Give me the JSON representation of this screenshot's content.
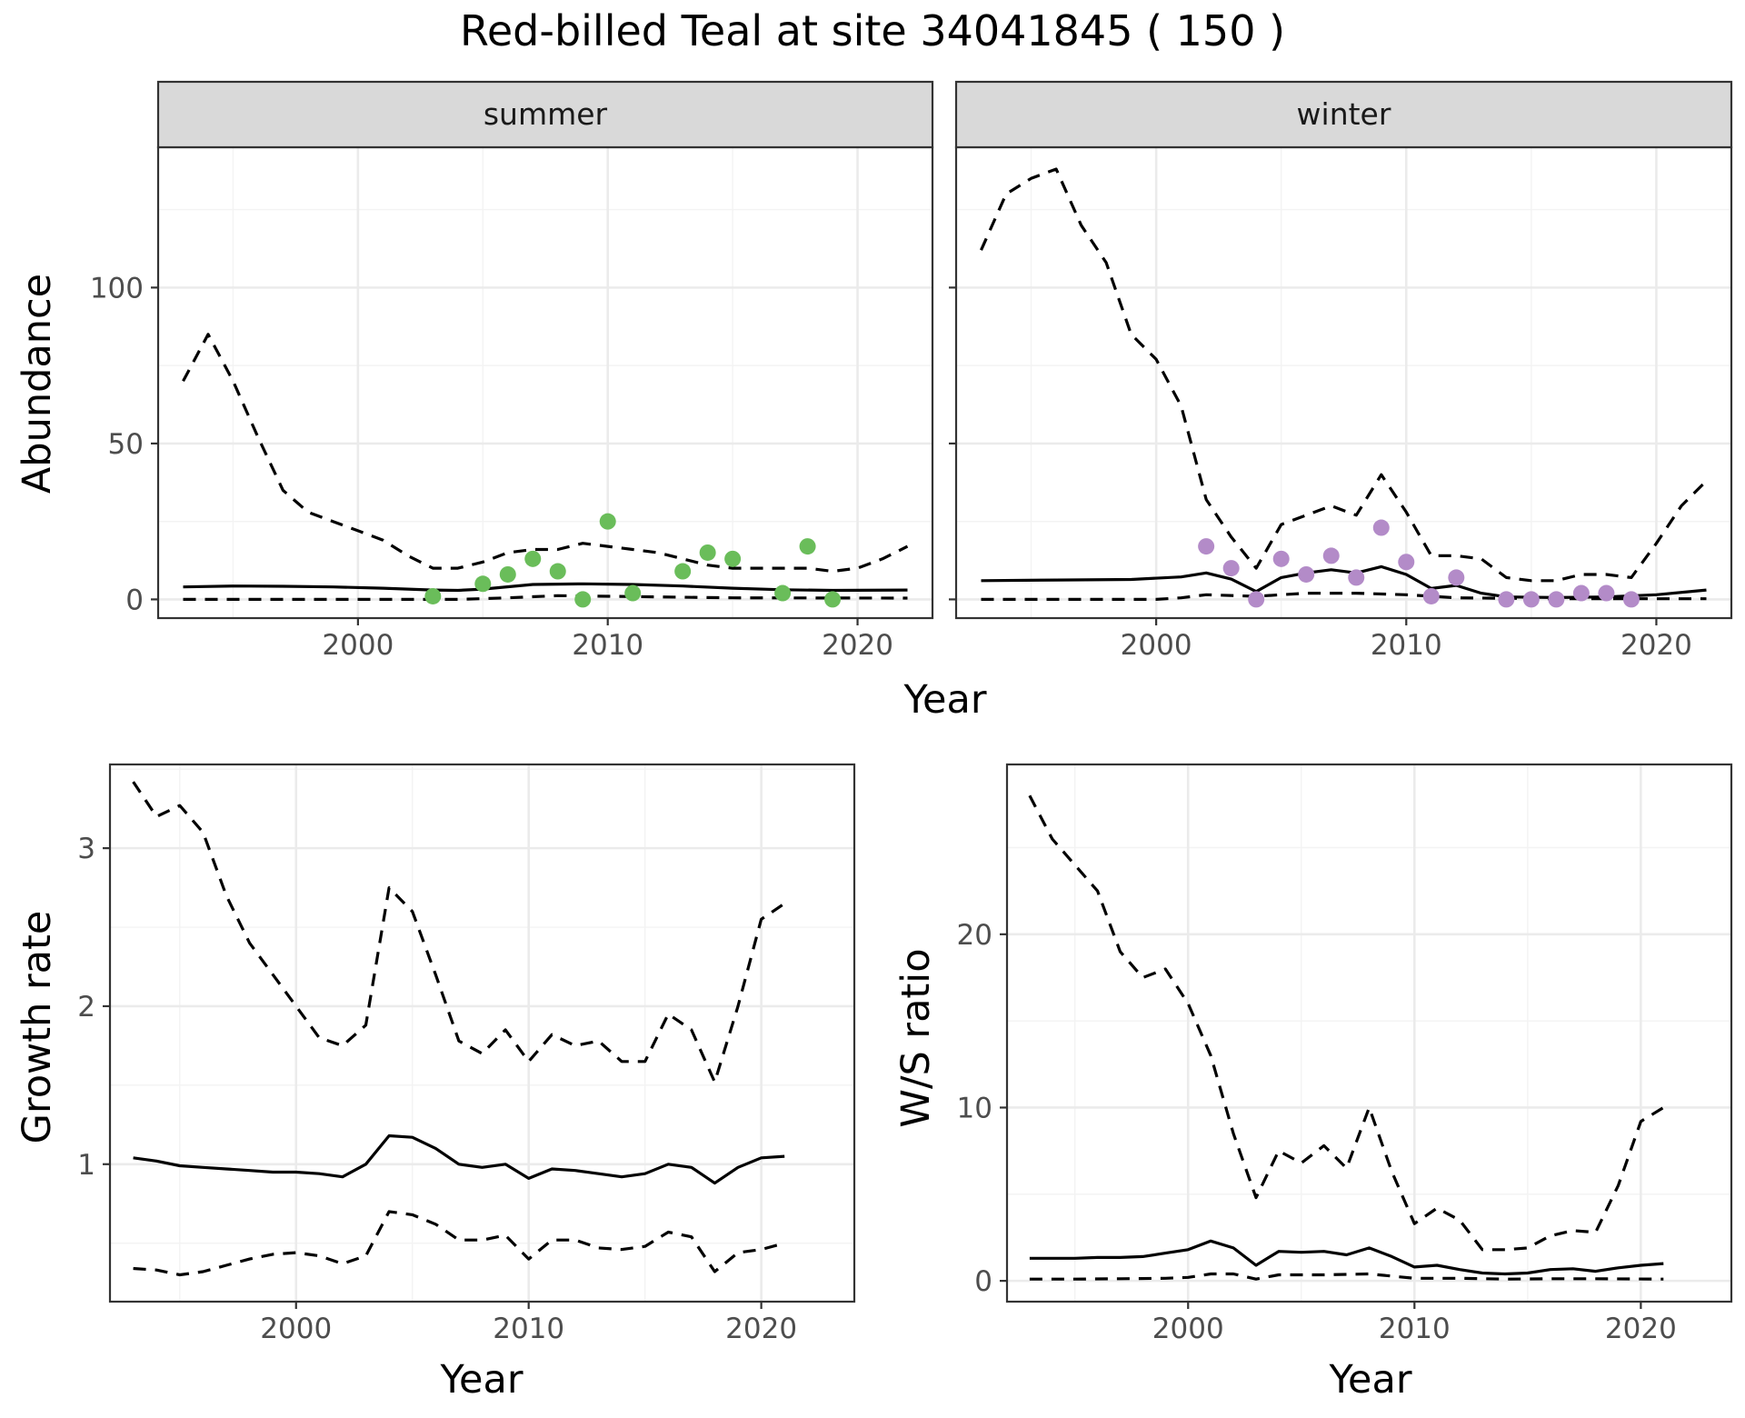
{
  "title": "Red-billed Teal at site 34041845 ( 150 )",
  "colors": {
    "summer_points": "#6abd5a",
    "winter_points": "#b38bc8"
  },
  "chart_data": [
    {
      "id": "abundance_summer",
      "type": "line",
      "facet": "summer",
      "xlabel": "Year",
      "ylabel": "Abundance",
      "xlim": [
        1992,
        2023
      ],
      "ylim": [
        -6,
        145
      ],
      "xticks": [
        2000,
        2010,
        2020
      ],
      "yticks": [
        0,
        50,
        100
      ],
      "grid": true,
      "series": [
        {
          "role": "upper",
          "x": [
            1993,
            1994,
            1995,
            1996,
            1997,
            1998,
            1999,
            2000,
            2001,
            2002,
            2003,
            2004,
            2005,
            2006,
            2007,
            2008,
            2009,
            2010,
            2011,
            2012,
            2013,
            2014,
            2015,
            2016,
            2017,
            2018,
            2019,
            2020,
            2021,
            2022
          ],
          "y": [
            70,
            85,
            70,
            52,
            35,
            28,
            25,
            22,
            19,
            14,
            10,
            10,
            12,
            15,
            16,
            16,
            18,
            17,
            16,
            15,
            13,
            11,
            10,
            10,
            10,
            10,
            9,
            10,
            13,
            17
          ]
        },
        {
          "role": "estimate",
          "x": [
            1993,
            1995,
            1997,
            1999,
            2001,
            2003,
            2004,
            2005,
            2007,
            2009,
            2011,
            2013,
            2015,
            2017,
            2019,
            2022
          ],
          "y": [
            4,
            4.3,
            4.2,
            4,
            3.6,
            3.0,
            2.9,
            3.3,
            4.8,
            5.0,
            4.8,
            4.3,
            3.6,
            3.1,
            2.9,
            3.0
          ]
        },
        {
          "role": "lower",
          "x": [
            1993,
            2000,
            2004,
            2006,
            2008,
            2010,
            2015,
            2022
          ],
          "y": [
            0,
            0,
            0,
            0.5,
            1.2,
            1.0,
            0.5,
            0.4
          ]
        }
      ],
      "points": {
        "x": [
          2003,
          2005,
          2006,
          2007,
          2008,
          2009,
          2010,
          2011,
          2013,
          2014,
          2015,
          2017,
          2018,
          2019
        ],
        "y": [
          1,
          5,
          8,
          13,
          9,
          0,
          25,
          2,
          9,
          15,
          13,
          2,
          17,
          0
        ]
      }
    },
    {
      "id": "abundance_winter",
      "type": "line",
      "facet": "winter",
      "xlabel": "Year",
      "ylabel": "Abundance",
      "xlim": [
        1992,
        2023
      ],
      "ylim": [
        -6,
        145
      ],
      "xticks": [
        2000,
        2010,
        2020
      ],
      "yticks": [
        0,
        50,
        100
      ],
      "grid": true,
      "series": [
        {
          "role": "upper",
          "x": [
            1993,
            1994,
            1995,
            1996,
            1997,
            1998,
            1999,
            2000,
            2001,
            2002,
            2003,
            2004,
            2005,
            2006,
            2007,
            2008,
            2009,
            2010,
            2011,
            2012,
            2013,
            2014,
            2015,
            2016,
            2017,
            2018,
            2019,
            2020,
            2021,
            2022
          ],
          "y": [
            112,
            130,
            135,
            138,
            120,
            108,
            85,
            77,
            62,
            32,
            20,
            10,
            24,
            27,
            30,
            27,
            40,
            28,
            14,
            14,
            13,
            7,
            6,
            6,
            8,
            8,
            7,
            18,
            30,
            38
          ]
        },
        {
          "role": "estimate",
          "x": [
            1993,
            1996,
            1999,
            2001,
            2002,
            2003,
            2004,
            2005,
            2006,
            2007,
            2008,
            2009,
            2010,
            2011,
            2012,
            2013,
            2014,
            2016,
            2018,
            2020,
            2022
          ],
          "y": [
            6,
            6.2,
            6.4,
            7.2,
            8.5,
            6.5,
            2.5,
            7.0,
            8.5,
            9.5,
            8.5,
            10.5,
            8.0,
            3.5,
            4.5,
            2.0,
            0.8,
            0.6,
            0.8,
            1.5,
            3.0
          ]
        },
        {
          "role": "lower",
          "x": [
            1993,
            2000,
            2001,
            2002,
            2004,
            2006,
            2008,
            2010,
            2012,
            2016,
            2022
          ],
          "y": [
            0,
            0,
            0.5,
            1.5,
            1.0,
            2.0,
            2.0,
            1.5,
            0.5,
            0.2,
            0.2
          ]
        }
      ],
      "points": {
        "x": [
          2002,
          2003,
          2004,
          2005,
          2006,
          2007,
          2008,
          2009,
          2010,
          2011,
          2012,
          2014,
          2015,
          2016,
          2017,
          2018,
          2019
        ],
        "y": [
          17,
          10,
          0,
          13,
          8,
          14,
          7,
          23,
          12,
          1,
          7,
          0,
          0,
          0,
          2,
          2,
          0
        ]
      }
    },
    {
      "id": "growth_rate",
      "type": "line",
      "xlabel": "Year",
      "ylabel": "Growth rate",
      "xlim": [
        1992,
        2024
      ],
      "ylim": [
        0.13,
        3.53
      ],
      "xticks": [
        2000,
        2010,
        2020
      ],
      "yticks": [
        1,
        2,
        3
      ],
      "grid": true,
      "series": [
        {
          "role": "upper",
          "x": [
            1993,
            1994,
            1995,
            1996,
            1997,
            1998,
            1999,
            2000,
            2001,
            2002,
            2003,
            2004,
            2005,
            2006,
            2007,
            2008,
            2009,
            2010,
            2011,
            2012,
            2013,
            2014,
            2015,
            2016,
            2017,
            2018,
            2019,
            2020,
            2021
          ],
          "y": [
            3.42,
            3.2,
            3.27,
            3.1,
            2.7,
            2.4,
            2.2,
            2.0,
            1.8,
            1.75,
            1.88,
            2.75,
            2.6,
            2.2,
            1.78,
            1.7,
            1.85,
            1.65,
            1.82,
            1.75,
            1.78,
            1.65,
            1.65,
            1.95,
            1.85,
            1.52,
            2.0,
            2.55,
            2.65
          ]
        },
        {
          "role": "estimate",
          "x": [
            1993,
            1994,
            1995,
            1996,
            1997,
            1998,
            1999,
            2000,
            2001,
            2002,
            2003,
            2004,
            2005,
            2006,
            2007,
            2008,
            2009,
            2010,
            2011,
            2012,
            2013,
            2014,
            2015,
            2016,
            2017,
            2018,
            2019,
            2020,
            2021
          ],
          "y": [
            1.04,
            1.02,
            0.99,
            0.98,
            0.97,
            0.96,
            0.95,
            0.95,
            0.94,
            0.92,
            1.0,
            1.18,
            1.17,
            1.1,
            1.0,
            0.98,
            1.0,
            0.91,
            0.97,
            0.96,
            0.94,
            0.92,
            0.94,
            1.0,
            0.98,
            0.88,
            0.98,
            1.04,
            1.05
          ]
        },
        {
          "role": "lower",
          "x": [
            1993,
            1994,
            1995,
            1996,
            1997,
            1998,
            1999,
            2000,
            2001,
            2002,
            2003,
            2004,
            2005,
            2006,
            2007,
            2008,
            2009,
            2010,
            2011,
            2012,
            2013,
            2014,
            2015,
            2016,
            2017,
            2018,
            2019,
            2020,
            2021
          ],
          "y": [
            0.34,
            0.33,
            0.3,
            0.32,
            0.36,
            0.4,
            0.43,
            0.44,
            0.42,
            0.37,
            0.42,
            0.7,
            0.68,
            0.62,
            0.52,
            0.52,
            0.55,
            0.4,
            0.52,
            0.52,
            0.47,
            0.46,
            0.48,
            0.57,
            0.54,
            0.32,
            0.44,
            0.46,
            0.5
          ]
        }
      ]
    },
    {
      "id": "ws_ratio",
      "type": "line",
      "xlabel": "Year",
      "ylabel": "W/S ratio",
      "xlim": [
        1992,
        2024
      ],
      "ylim": [
        -1.2,
        29.8
      ],
      "xticks": [
        2000,
        2010,
        2020
      ],
      "yticks": [
        0,
        10,
        20
      ],
      "grid": true,
      "series": [
        {
          "role": "upper",
          "x": [
            1993,
            1994,
            1995,
            1996,
            1997,
            1998,
            1999,
            2000,
            2001,
            2002,
            2003,
            2004,
            2005,
            2006,
            2007,
            2008,
            2009,
            2010,
            2011,
            2012,
            2013,
            2014,
            2015,
            2016,
            2017,
            2018,
            2019,
            2020,
            2021
          ],
          "y": [
            28,
            25.5,
            24,
            22.5,
            19,
            17.5,
            18,
            16,
            13,
            8.5,
            4.8,
            7.5,
            6.8,
            7.8,
            6.5,
            10,
            6.3,
            3.3,
            4.2,
            3.5,
            1.8,
            1.8,
            1.9,
            2.6,
            2.9,
            2.8,
            5.5,
            9.2,
            10
          ]
        },
        {
          "role": "estimate",
          "x": [
            1993,
            1994,
            1995,
            1996,
            1997,
            1998,
            1999,
            2000,
            2001,
            2002,
            2003,
            2004,
            2005,
            2006,
            2007,
            2008,
            2009,
            2010,
            2011,
            2012,
            2013,
            2014,
            2015,
            2016,
            2017,
            2018,
            2019,
            2020,
            2021
          ],
          "y": [
            1.3,
            1.3,
            1.3,
            1.35,
            1.35,
            1.4,
            1.6,
            1.8,
            2.3,
            1.9,
            0.9,
            1.7,
            1.65,
            1.7,
            1.5,
            1.9,
            1.4,
            0.8,
            0.9,
            0.65,
            0.45,
            0.4,
            0.45,
            0.65,
            0.7,
            0.55,
            0.75,
            0.9,
            1.0
          ]
        },
        {
          "role": "lower",
          "x": [
            1993,
            1995,
            1997,
            1999,
            2000,
            2001,
            2002,
            2003,
            2004,
            2006,
            2008,
            2010,
            2012,
            2014,
            2016,
            2018,
            2021
          ],
          "y": [
            0.1,
            0.1,
            0.12,
            0.15,
            0.2,
            0.4,
            0.4,
            0.1,
            0.35,
            0.35,
            0.4,
            0.15,
            0.15,
            0.1,
            0.12,
            0.12,
            0.1
          ]
        }
      ]
    }
  ]
}
